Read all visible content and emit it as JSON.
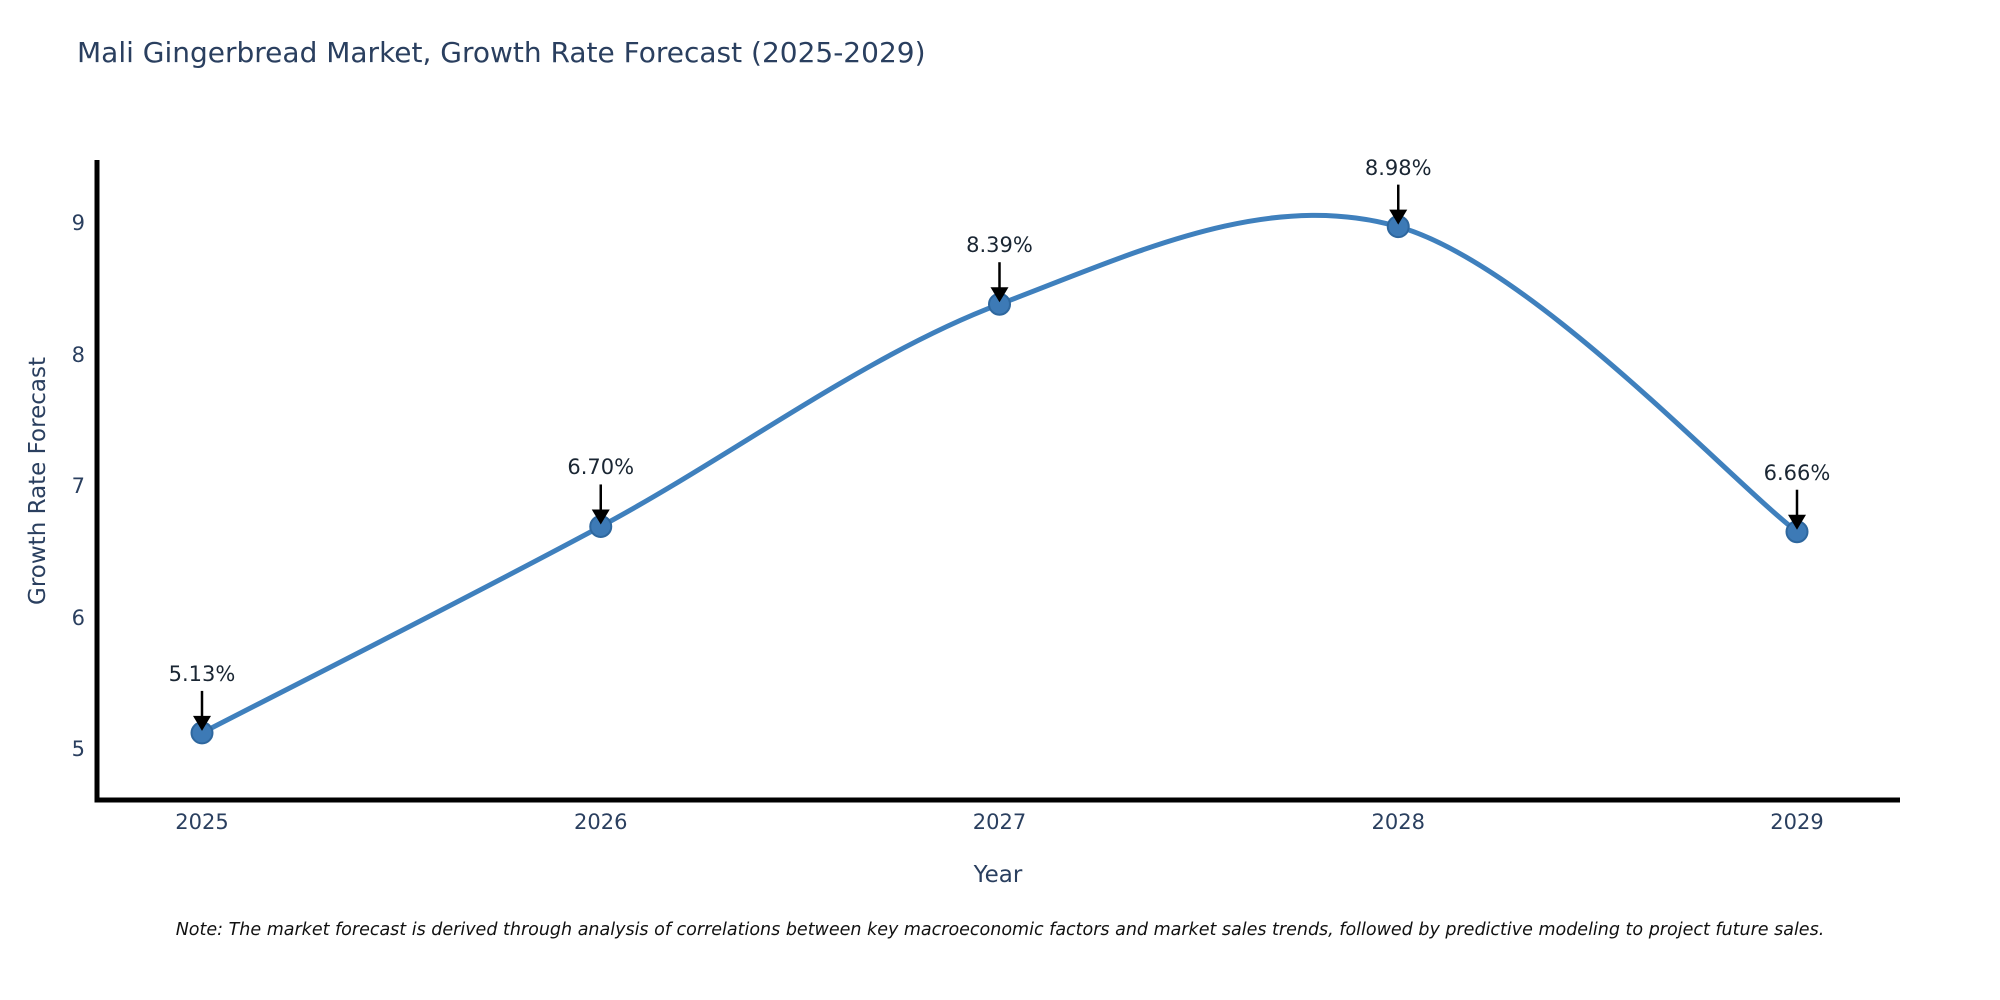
{
  "chart_data": {
    "type": "line",
    "title": "Mali Gingerbread Market, Growth Rate Forecast (2025-2029)",
    "xlabel": "Year",
    "ylabel": "Growth Rate Forecast",
    "x": [
      2025,
      2026,
      2027,
      2028,
      2029
    ],
    "series": [
      {
        "name": "Growth Rate Forecast",
        "values": [
          5.13,
          6.7,
          8.39,
          8.98,
          6.66
        ],
        "point_labels": [
          "5.13%",
          "6.70%",
          "8.39%",
          "8.98%",
          "6.66%"
        ]
      }
    ],
    "xticks": [
      "2025",
      "2026",
      "2027",
      "2028",
      "2029"
    ],
    "yticks": [
      5,
      6,
      7,
      8,
      9
    ],
    "ylim": [
      4.6,
      9.5
    ],
    "line_shape": "spline",
    "grid": false,
    "legend": "none",
    "markers": true,
    "annotations_have_arrows": true,
    "note": "Note: The market forecast is derived through analysis of correlations between key macroeconomic factors and market sales trends, followed by predictive modeling to project future sales.",
    "colors": {
      "line": "#3f80bd",
      "marker_fill": "#3d7ab6",
      "marker_edge": "#2e679e",
      "axis": "#000000",
      "title_text": "#2a3f5f",
      "tick_text": "#2a3f5f",
      "annotation_text": "#1a2633",
      "arrow": "#000000",
      "background": "#ffffff"
    }
  }
}
